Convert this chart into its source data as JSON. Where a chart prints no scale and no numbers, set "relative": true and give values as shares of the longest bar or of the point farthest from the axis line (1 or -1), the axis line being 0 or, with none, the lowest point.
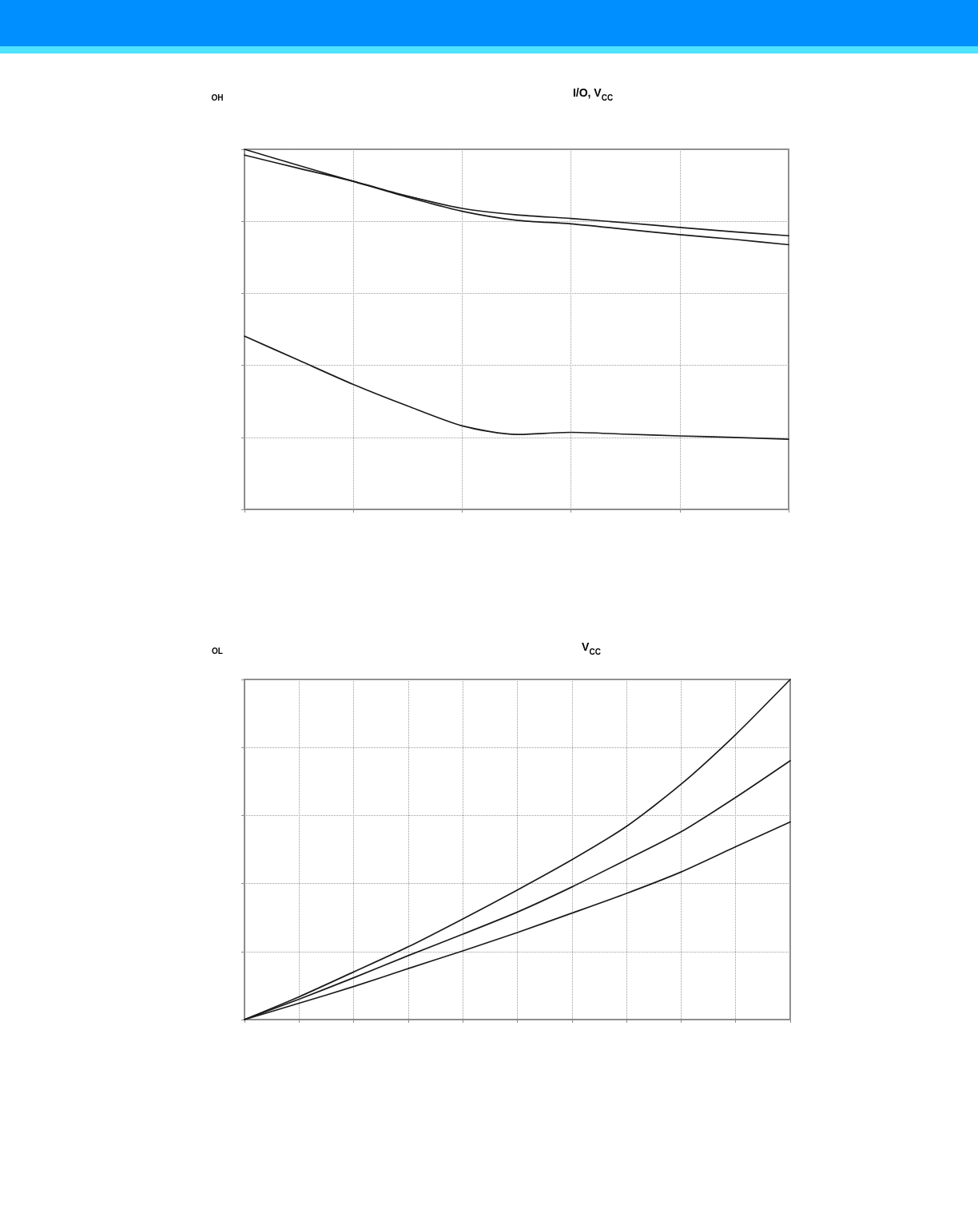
{
  "chart_data": [
    {
      "type": "line",
      "title": "I/O, V$_{CC}$",
      "ylabel": "OH",
      "categories": [
        null,
        null,
        null,
        null,
        null,
        null,
        null,
        null,
        null,
        null,
        null
      ],
      "series": [
        {
          "color": "#1a1a1a",
          "values": [
            1.0,
            0.955,
            0.911,
            0.867,
            0.828,
            0.803,
            0.793,
            0.778,
            0.763,
            0.75,
            0.735
          ]
        },
        {
          "color": "#1a1a1a",
          "values": [
            0.984,
            0.947,
            0.911,
            0.87,
            0.836,
            0.818,
            0.808,
            0.796,
            0.783,
            0.771,
            0.76
          ]
        },
        {
          "color": "#1a1a1a",
          "values": [
            0.481,
            0.414,
            0.347,
            0.287,
            0.232,
            0.208,
            0.214,
            0.209,
            0.204,
            0.2,
            0.195
          ]
        }
      ],
      "relative": true,
      "grid": true,
      "tick_labels": false,
      "marker": "none",
      "line_style": "solid"
    },
    {
      "type": "line",
      "title": "V$_{CC}$",
      "ylabel": "OL",
      "categories": [
        null,
        null,
        null,
        null,
        null,
        null,
        null,
        null,
        null,
        null,
        null
      ],
      "series": [
        {
          "color": "#1a1a1a",
          "values": [
            0,
            0.067,
            0.14,
            0.214,
            0.296,
            0.381,
            0.47,
            0.568,
            0.692,
            0.838,
            1.0
          ]
        },
        {
          "color": "#1a1a1a",
          "values": [
            0,
            0.06,
            0.123,
            0.188,
            0.251,
            0.316,
            0.39,
            0.47,
            0.552,
            0.653,
            0.761
          ]
        },
        {
          "color": "#1a1a1a",
          "values": [
            0,
            0.048,
            0.097,
            0.15,
            0.202,
            0.256,
            0.313,
            0.371,
            0.434,
            0.508,
            0.581
          ]
        }
      ],
      "relative": true,
      "grid": true,
      "tick_labels": false,
      "marker": "none",
      "line_style": "solid"
    }
  ]
}
